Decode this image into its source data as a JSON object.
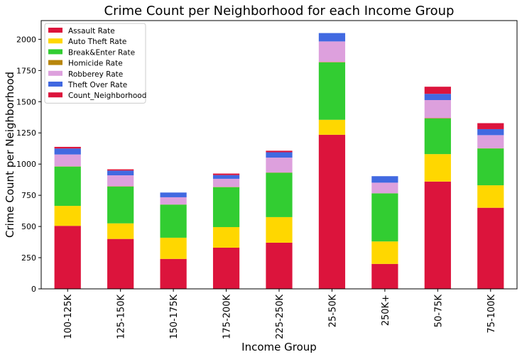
{
  "chart_data": {
    "type": "bar",
    "stacked": true,
    "title": "Crime Count per Neighborhood for each Income Group",
    "xlabel": "Income Group",
    "ylabel": "Crime Count per Neighborhood",
    "ylim": [
      0,
      2150
    ],
    "yticks": [
      0,
      250,
      500,
      750,
      1000,
      1250,
      1500,
      1750,
      2000
    ],
    "grid": false,
    "legend_position": "top-left",
    "categories": [
      "100-125K",
      "125-150K",
      "150-175K",
      "175-200K",
      "225-250K",
      "25-50K",
      "250K+",
      "50-75K",
      "75-100K"
    ],
    "series": [
      {
        "name": "Assault Rate",
        "color": "#dc143c",
        "values": [
          505,
          400,
          240,
          330,
          370,
          1235,
          200,
          860,
          650
        ]
      },
      {
        "name": "Auto Theft Rate",
        "color": "#ffd700",
        "values": [
          160,
          125,
          170,
          165,
          205,
          120,
          180,
          220,
          180
        ]
      },
      {
        "name": "Break&Enter Rate",
        "color": "#32cd32",
        "values": [
          315,
          295,
          265,
          320,
          355,
          460,
          385,
          285,
          295
        ]
      },
      {
        "name": "Homicide Rate",
        "color": "#b8860b",
        "values": [
          2,
          2,
          1,
          2,
          2,
          3,
          1,
          3,
          2
        ]
      },
      {
        "name": "Robberey Rate",
        "color": "#dda0dd",
        "values": [
          95,
          88,
          58,
          65,
          120,
          165,
          85,
          145,
          105
        ]
      },
      {
        "name": "Theft Over Rate",
        "color": "#4169e1",
        "values": [
          48,
          38,
          38,
          30,
          43,
          67,
          52,
          50,
          48
        ]
      },
      {
        "name": "Count_Neighborhood",
        "color": "#dc143c",
        "values": [
          13,
          10,
          0,
          12,
          12,
          0,
          0,
          57,
          48
        ]
      }
    ]
  }
}
